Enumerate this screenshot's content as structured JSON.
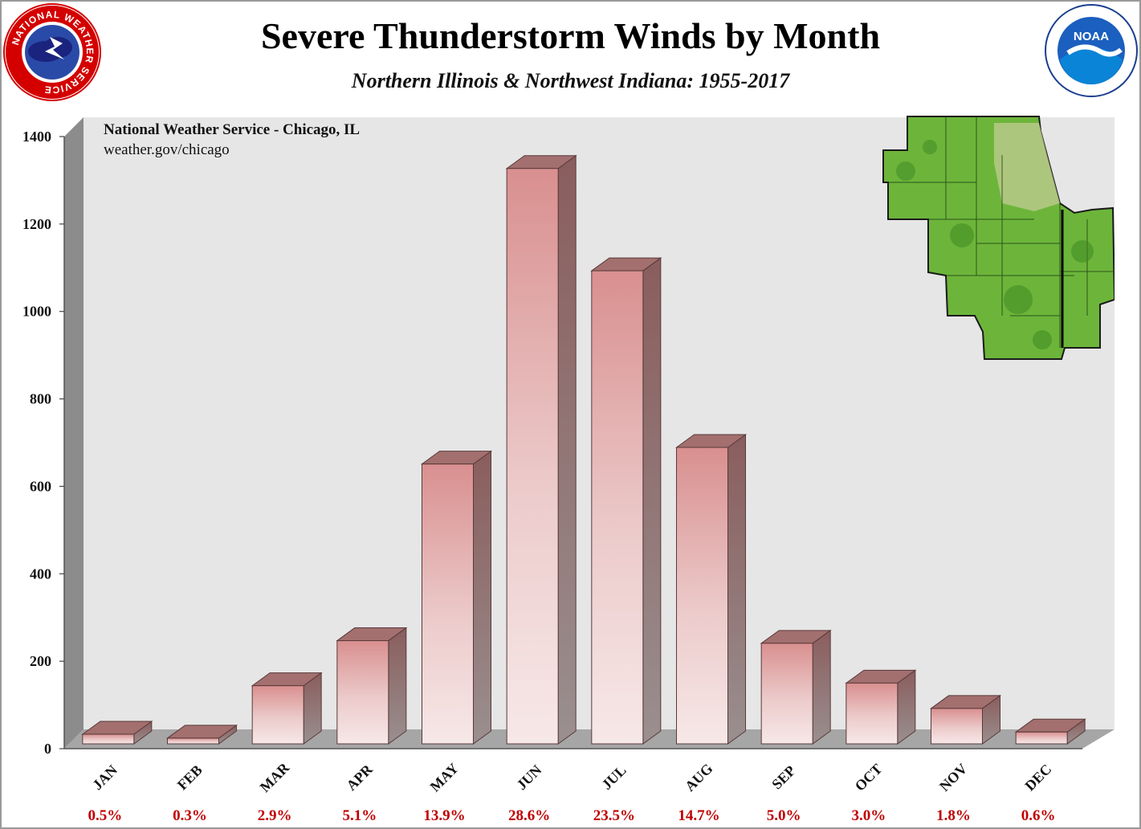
{
  "title": "Severe Thunderstorm Winds by Month",
  "subtitle": "Northern Illinois & Northwest Indiana: 1955-2017",
  "credit": {
    "line1": "National Weather Service - Chicago, IL",
    "line2": "weather.gov/chicago"
  },
  "logos": {
    "left": {
      "icon": "nws-logo-icon",
      "text": "NATIONAL WEATHER SERVICE"
    },
    "right": {
      "icon": "noaa-logo-icon",
      "text": "NOAA"
    }
  },
  "inset_map": {
    "icon": "county-map-icon",
    "region": "Northern Illinois & Northwest Indiana"
  },
  "colors": {
    "bar_top": "#a36f6f",
    "bar_side": "#8a5d5d",
    "bar_front_top": "#d98f8f",
    "bar_front_bottom": "#f7e8e8",
    "back_wall": "#e6e6e6",
    "side_wall": "#8c8c8c",
    "floor": "#a6a6a6",
    "percent_text": "#c00000"
  },
  "chart_data": {
    "type": "bar",
    "categories": [
      "JAN",
      "FEB",
      "MAR",
      "APR",
      "MAY",
      "JUN",
      "JUL",
      "AUG",
      "SEP",
      "OCT",
      "NOV",
      "DEC"
    ],
    "values": [
      22,
      13,
      133,
      236,
      640,
      1316,
      1082,
      678,
      230,
      139,
      81,
      27
    ],
    "percent_labels": [
      "0.5%",
      "0.3%",
      "2.9%",
      "5.1%",
      "13.9%",
      "28.6%",
      "23.5%",
      "14.7%",
      "5.0%",
      "3.0%",
      "1.8%",
      "0.6%"
    ],
    "ylim": [
      0,
      1400
    ],
    "yticks": [
      0,
      200,
      400,
      600,
      800,
      1000,
      1200,
      1400
    ],
    "grid": false,
    "legend": "none",
    "style": "3d"
  }
}
